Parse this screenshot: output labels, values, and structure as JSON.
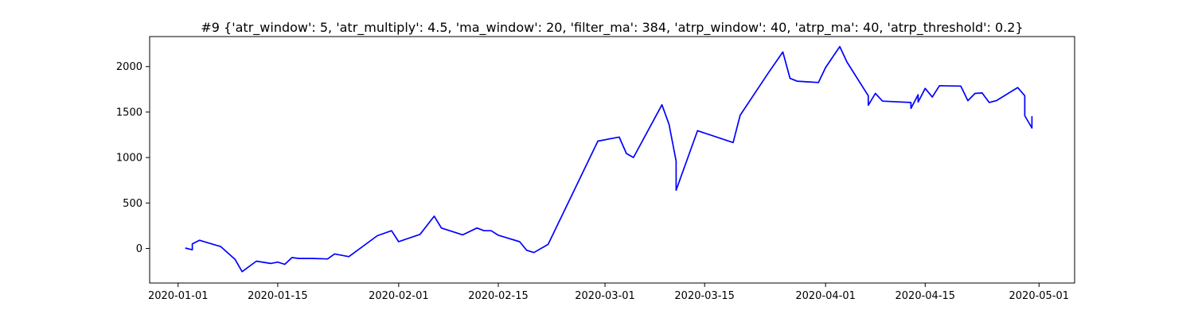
{
  "chart_data": {
    "type": "line",
    "title": "#9 {'atr_window': 5, 'atr_multiply': 4.5, 'ma_window': 20, 'filter_ma': 384, 'atrp_window': 40, 'atrp_ma': 40, 'atrp_threshold': 0.2}",
    "xlabel": "",
    "ylabel": "",
    "x_tick_labels": [
      "2020-01-01",
      "2020-01-15",
      "2020-02-01",
      "2020-02-15",
      "2020-03-01",
      "2020-03-15",
      "2020-04-01",
      "2020-04-15",
      "2020-05-01"
    ],
    "y_ticks": [
      0,
      500,
      1000,
      1500,
      2000
    ],
    "xlim": [
      "2019-12-28",
      "2020-05-06"
    ],
    "ylim": [
      -380,
      2330
    ],
    "grid": false,
    "line_color": "#0000ff",
    "series": [
      {
        "x": [
          "2020-01-02",
          "2020-01-03",
          "2020-01-03",
          "2020-01-04",
          "2020-01-07",
          "2020-01-09",
          "2020-01-10",
          "2020-01-12",
          "2020-01-14",
          "2020-01-15",
          "2020-01-16",
          "2020-01-17",
          "2020-01-18",
          "2020-01-20",
          "2020-01-22",
          "2020-01-23",
          "2020-01-25",
          "2020-01-29",
          "2020-01-31",
          "2020-02-01",
          "2020-02-04",
          "2020-02-06",
          "2020-02-07",
          "2020-02-10",
          "2020-02-12",
          "2020-02-13",
          "2020-02-14",
          "2020-02-15",
          "2020-02-18",
          "2020-02-19",
          "2020-02-20",
          "2020-02-22",
          "2020-02-29",
          "2020-03-03",
          "2020-03-04",
          "2020-03-05",
          "2020-03-09",
          "2020-03-10",
          "2020-03-11",
          "2020-03-11",
          "2020-03-14",
          "2020-03-19",
          "2020-03-20",
          "2020-03-24",
          "2020-03-26",
          "2020-03-27",
          "2020-03-28",
          "2020-03-31",
          "2020-04-01",
          "2020-04-03",
          "2020-04-04",
          "2020-04-07",
          "2020-04-07",
          "2020-04-08",
          "2020-04-09",
          "2020-04-13",
          "2020-04-13",
          "2020-04-14",
          "2020-04-14",
          "2020-04-15",
          "2020-04-16",
          "2020-04-17",
          "2020-04-20",
          "2020-04-21",
          "2020-04-22",
          "2020-04-23",
          "2020-04-24",
          "2020-04-25",
          "2020-04-28",
          "2020-04-29",
          "2020-04-29",
          "2020-04-30",
          "2020-04-30"
        ],
        "values": [
          5,
          -15,
          50,
          90,
          20,
          -120,
          -255,
          -140,
          -165,
          -150,
          -175,
          -100,
          -110,
          -110,
          -115,
          -60,
          -90,
          140,
          195,
          75,
          155,
          355,
          225,
          150,
          225,
          195,
          195,
          145,
          75,
          -20,
          -45,
          45,
          1180,
          1225,
          1045,
          1000,
          1580,
          1365,
          960,
          640,
          1295,
          1165,
          1465,
          1935,
          2160,
          1870,
          1840,
          1825,
          1990,
          2220,
          2050,
          1680,
          1575,
          1705,
          1620,
          1605,
          1540,
          1690,
          1610,
          1760,
          1665,
          1790,
          1785,
          1625,
          1705,
          1710,
          1605,
          1625,
          1770,
          1680,
          1460,
          1325,
          1455
        ]
      }
    ]
  }
}
